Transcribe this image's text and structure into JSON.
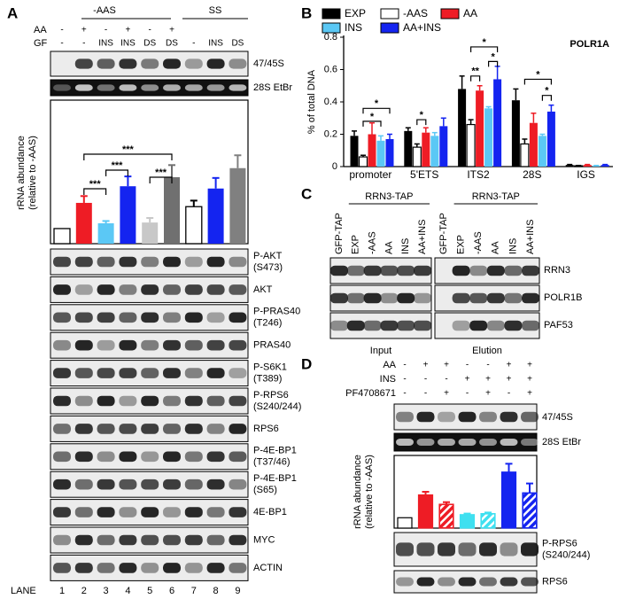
{
  "panel_a": {
    "label": "A",
    "groups": [
      "-AAS",
      "SS"
    ],
    "treatments": [
      {
        "name": "AA",
        "values": [
          "-",
          "+",
          "-",
          "+",
          "-",
          "+"
        ]
      },
      {
        "name": "GF",
        "values": [
          "-",
          "-",
          "INS",
          "INS",
          "DS",
          "DS",
          "-",
          "INS",
          "DS"
        ]
      }
    ],
    "top_blots": [
      "47/45S",
      "28S EtBr"
    ],
    "chart": {
      "type": "bar",
      "y_label": [
        "rRNA abundance",
        "(relative to -AAS)"
      ],
      "values": [
        1,
        2.7,
        1.35,
        3.8,
        1.4,
        4.4,
        2.45,
        3.65,
        5.0
      ],
      "errors": [
        0,
        0.45,
        0.15,
        0.65,
        0.3,
        0.8,
        0.4,
        0.7,
        0.85
      ],
      "colors": [
        "#ffffff",
        "#ee1c25",
        "#5bc8f5",
        "#1424f0",
        "#c8c8c8",
        "#707070",
        "#ffffff",
        "#1424f0",
        "#808080"
      ],
      "ylim": [
        0,
        9.5
      ],
      "significance": [
        "***",
        "***",
        "***",
        "***"
      ]
    },
    "blots": [
      [
        "P-AKT",
        "(S473)"
      ],
      [
        "AKT"
      ],
      [
        "P-PRAS40",
        "(T246)"
      ],
      [
        "PRAS40"
      ],
      [
        "P-S6K1",
        "(T389)"
      ],
      [
        "P-RPS6",
        "(S240/244)"
      ],
      [
        "RPS6"
      ],
      [
        "P-4E-BP1",
        "(T37/46)"
      ],
      [
        "P-4E-BP1",
        "(S65)"
      ],
      [
        "4E-BP1"
      ],
      [
        "MYC"
      ],
      [
        "ACTIN"
      ]
    ],
    "lane_label": "LANE",
    "lanes": [
      1,
      2,
      3,
      4,
      5,
      6,
      7,
      8,
      9
    ]
  },
  "panel_b": {
    "label": "B",
    "type": "bar",
    "title": "POLR1A",
    "y_label": "% of total DNA",
    "categories": [
      "promoter",
      "5'ETS",
      "ITS2",
      "28S",
      "IGS"
    ],
    "series": [
      {
        "name": "EXP",
        "color": "#000000",
        "values": [
          0.19,
          0.22,
          0.48,
          0.41,
          0.01
        ],
        "errors": [
          0.03,
          0.02,
          0.08,
          0.07,
          0.003
        ]
      },
      {
        "name": "-AAS",
        "color": "#ffffff",
        "values": [
          0.06,
          0.12,
          0.26,
          0.14,
          0.005
        ],
        "errors": [
          0.01,
          0.02,
          0.03,
          0.03,
          0.002
        ]
      },
      {
        "name": "AA",
        "color": "#ee1c25",
        "values": [
          0.2,
          0.21,
          0.47,
          0.27,
          0.01
        ],
        "errors": [
          0.07,
          0.03,
          0.03,
          0.06,
          0.003
        ]
      },
      {
        "name": "INS",
        "color": "#5bc8f5",
        "values": [
          0.16,
          0.19,
          0.36,
          0.19,
          0.005
        ],
        "errors": [
          0.03,
          0.02,
          0.01,
          0.01,
          0.002
        ]
      },
      {
        "name": "AA+INS",
        "color": "#1424f0",
        "values": [
          0.17,
          0.25,
          0.54,
          0.34,
          0.01
        ],
        "errors": [
          0.03,
          0.05,
          0.08,
          0.04,
          0.003
        ]
      }
    ],
    "ylim": [
      0,
      0.8
    ],
    "yticks": [
      0,
      0.2,
      0.4,
      0.6,
      0.8
    ],
    "significance": [
      "*",
      "*",
      "*",
      "*",
      "*",
      "**",
      "*",
      "*"
    ]
  },
  "panel_c": {
    "label": "C",
    "header": "RRN3-TAP",
    "columns": [
      "GFP-TAP",
      "EXP",
      "-AAS",
      "AA",
      "INS",
      "AA+INS"
    ],
    "rows": [
      "RRN3",
      "POLR1B",
      "PAF53"
    ],
    "sections": [
      "Input",
      "Elution"
    ]
  },
  "panel_d": {
    "label": "D",
    "treatments": [
      {
        "name": "AA",
        "values": [
          "-",
          "+",
          "+",
          "-",
          "-",
          "+",
          "+"
        ]
      },
      {
        "name": "INS",
        "values": [
          "-",
          "-",
          "-",
          "+",
          "+",
          "+",
          "+"
        ]
      },
      {
        "name": "PF4708671",
        "values": [
          "-",
          "-",
          "+",
          "-",
          "+",
          "-",
          "+"
        ]
      }
    ],
    "top_blots": [
      "47/45S",
      "28S EtBr"
    ],
    "chart": {
      "type": "bar",
      "y_label": [
        "rRNA abundance",
        "(relative to -AAS)"
      ],
      "values": [
        1,
        3.2,
        2.3,
        1.3,
        1.4,
        5.4,
        3.4
      ],
      "errors": [
        0,
        0.3,
        0.2,
        0.1,
        0.1,
        0.8,
        0.9
      ],
      "colors": [
        "#ffffff",
        "#ee1c25",
        "#ee1c25",
        "#3fe0f0",
        "#3fe0f0",
        "#1424f0",
        "#1424f0"
      ],
      "hatched": [
        false,
        false,
        true,
        false,
        true,
        false,
        true
      ],
      "ylim": [
        0,
        7
      ]
    },
    "blots": [
      [
        "P-RPS6",
        "(S240/244)"
      ],
      [
        "RPS6"
      ]
    ]
  }
}
